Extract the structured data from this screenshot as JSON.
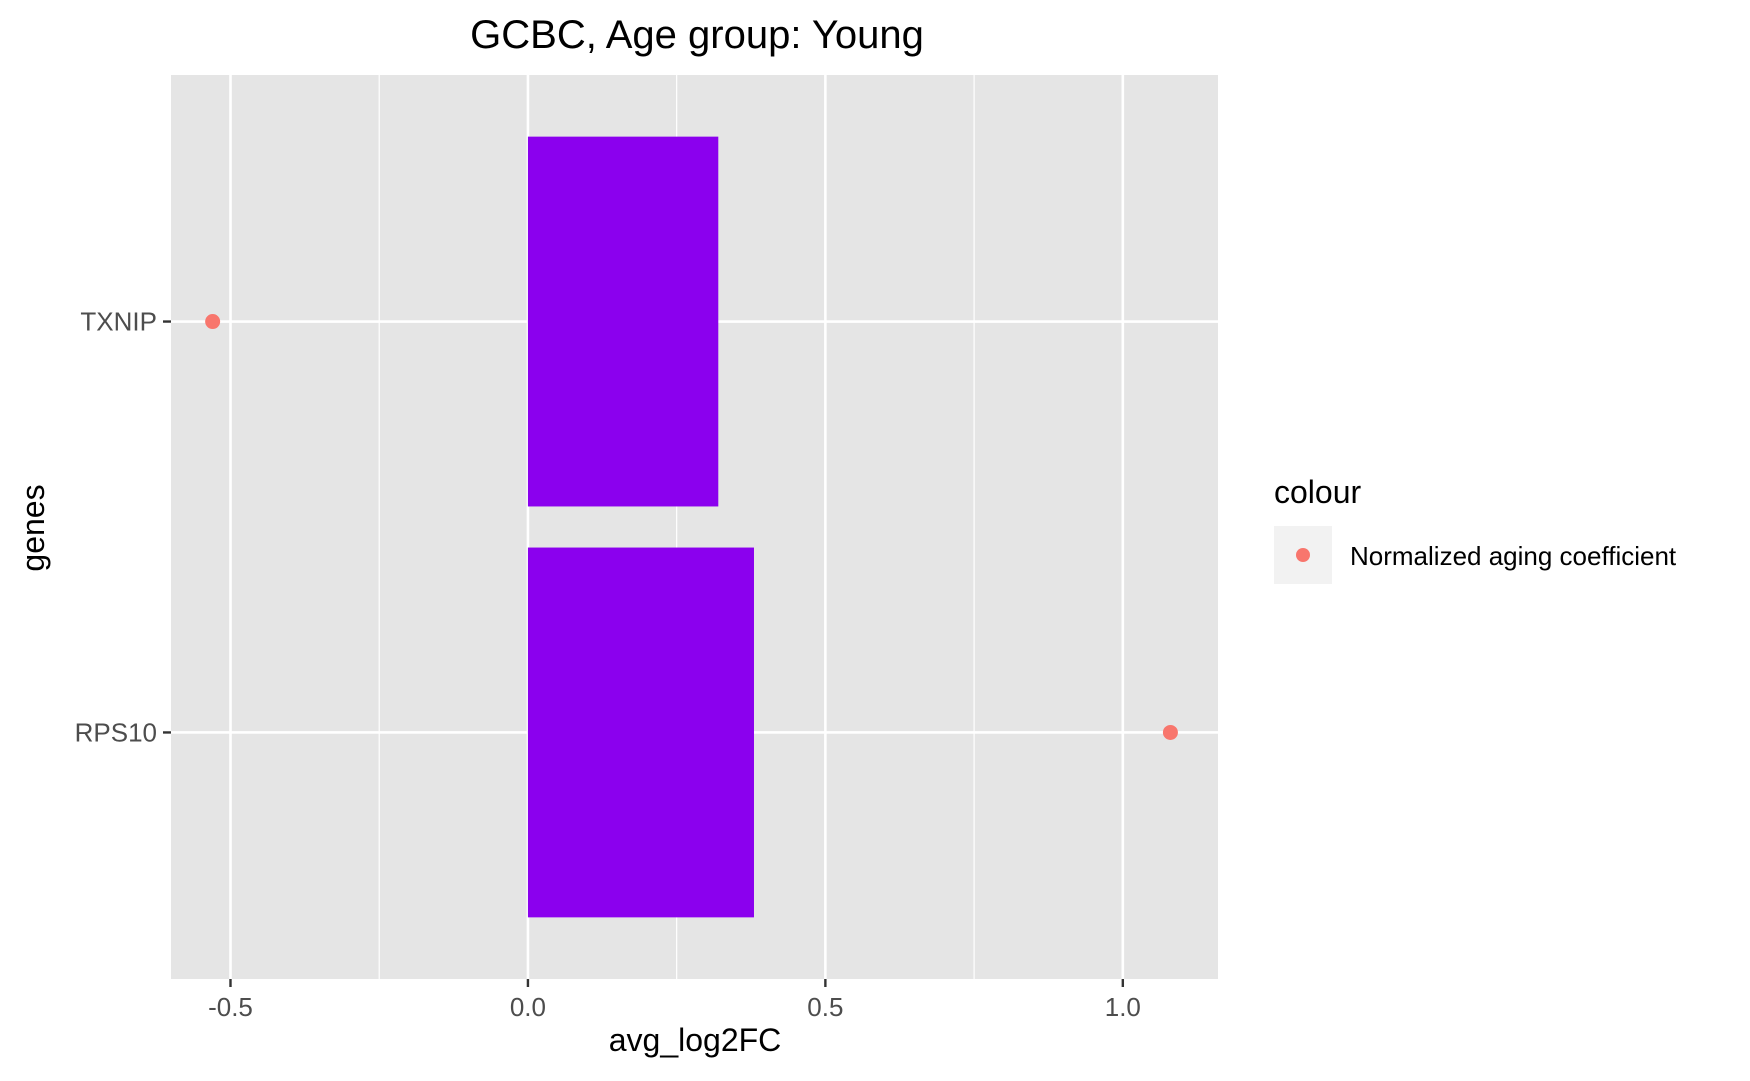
{
  "chart_data": {
    "type": "bar",
    "title": "GCBC, Age group: Young",
    "xlabel": "avg_log2FC",
    "ylabel": "genes",
    "orientation": "horizontal",
    "xlim": [
      -0.6,
      1.16
    ],
    "x_ticks": [
      {
        "value": -0.5,
        "label": "-0.5"
      },
      {
        "value": 0.0,
        "label": "0.0"
      },
      {
        "value": 0.5,
        "label": "0.5"
      },
      {
        "value": 1.0,
        "label": "1.0"
      }
    ],
    "categories": [
      "TXNIP",
      "RPS10"
    ],
    "bars": {
      "color": "#8B00EE",
      "values": [
        0.32,
        0.38
      ]
    },
    "points": {
      "name": "Normalized aging coefficient",
      "color": "#F8766D",
      "values": [
        -0.53,
        1.08
      ]
    },
    "legend": {
      "title": "colour",
      "position": "right",
      "items": [
        {
          "label": "Normalized aging coefficient",
          "color": "#F8766D",
          "shape": "point"
        }
      ]
    },
    "grid": true,
    "panel_background": "#E5E5E5",
    "grid_color": "#FFFFFF"
  }
}
